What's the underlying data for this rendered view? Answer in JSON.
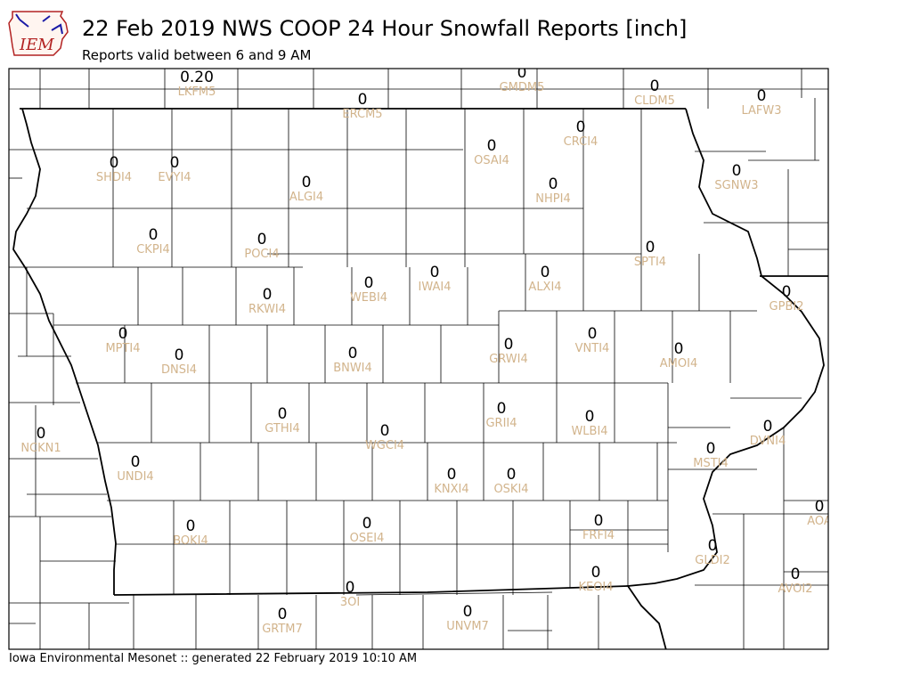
{
  "header": {
    "logo_text": "IEM",
    "title": "22 Feb 2019 NWS COOP 24 Hour Snowfall Reports [inch]",
    "subtitle": "Reports valid between 6 and 9 AM"
  },
  "footer": {
    "text": "Iowa Environmental Mesonet :: generated 22 February 2019 10:10 AM"
  },
  "colors": {
    "station_label": "#d2b48c",
    "value": "#000000",
    "county_line": "#000000",
    "logo_blue": "#1a1aa6",
    "logo_red": "#b22222"
  },
  "stations": [
    {
      "id": "LKFM5",
      "value": "0.20"
    },
    {
      "id": "GMDM5",
      "value": "0"
    },
    {
      "id": "ERCM5",
      "value": "0"
    },
    {
      "id": "CLDM5",
      "value": "0"
    },
    {
      "id": "LAFW3",
      "value": "0"
    },
    {
      "id": "CRCI4",
      "value": "0"
    },
    {
      "id": "OSAI4",
      "value": "0"
    },
    {
      "id": "SHDI4",
      "value": "0"
    },
    {
      "id": "EVYI4",
      "value": "0"
    },
    {
      "id": "ALGI4",
      "value": "0"
    },
    {
      "id": "NHPI4",
      "value": "0"
    },
    {
      "id": "SGNW3",
      "value": "0"
    },
    {
      "id": "CKPI4",
      "value": "0"
    },
    {
      "id": "POCI4",
      "value": "0"
    },
    {
      "id": "SPTI4",
      "value": "0"
    },
    {
      "id": "RKWI4",
      "value": "0"
    },
    {
      "id": "WEBI4",
      "value": "0"
    },
    {
      "id": "IWAI4",
      "value": "0"
    },
    {
      "id": "ALXI4",
      "value": "0"
    },
    {
      "id": "GPBI2",
      "value": "0"
    },
    {
      "id": "MPTI4",
      "value": "0"
    },
    {
      "id": "DNSI4",
      "value": "0"
    },
    {
      "id": "BNWI4",
      "value": "0"
    },
    {
      "id": "GRWI4",
      "value": "0"
    },
    {
      "id": "VNTI4",
      "value": "0"
    },
    {
      "id": "AMOI4",
      "value": "0"
    },
    {
      "id": "GTHI4",
      "value": "0"
    },
    {
      "id": "WGCI4",
      "value": "0"
    },
    {
      "id": "GRII4",
      "value": "0"
    },
    {
      "id": "WLBI4",
      "value": "0"
    },
    {
      "id": "DVNI4",
      "value": "0"
    },
    {
      "id": "NCKN1",
      "value": "0"
    },
    {
      "id": "UNDI4",
      "value": "0"
    },
    {
      "id": "KNXI4",
      "value": "0"
    },
    {
      "id": "OSKI4",
      "value": "0"
    },
    {
      "id": "MSTI4",
      "value": "0"
    },
    {
      "id": "AOA",
      "value": "0"
    },
    {
      "id": "BOKI4",
      "value": "0"
    },
    {
      "id": "OSEI4",
      "value": "0"
    },
    {
      "id": "FRFI4",
      "value": "0"
    },
    {
      "id": "GLDI2",
      "value": "0"
    },
    {
      "id": "KEOI4",
      "value": "0"
    },
    {
      "id": "AVOI2",
      "value": "0"
    },
    {
      "id": "3OI",
      "value": "0"
    },
    {
      "id": "GRTM7",
      "value": "0"
    },
    {
      "id": "UNVM7",
      "value": "0"
    }
  ]
}
